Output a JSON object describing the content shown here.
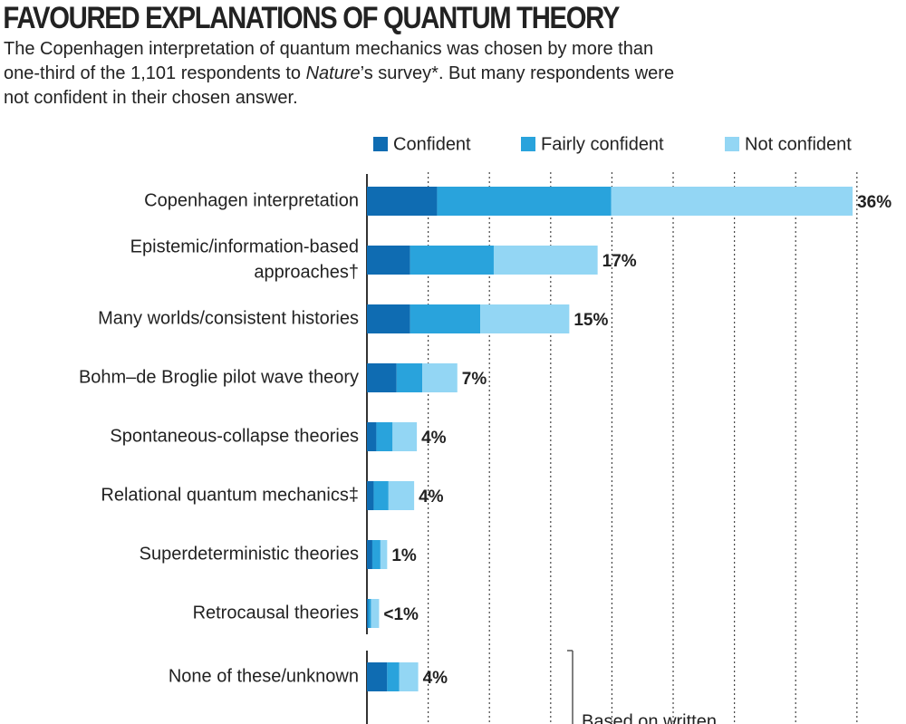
{
  "chart_data": {
    "type": "stacked-bar-horizontal",
    "title": "FAVOURED EXPLANATIONS OF QUANTUM THEORY",
    "subtitle": [
      [
        "The Copenhagen interpretation of quantum mechanics was chosen by more than"
      ],
      [
        "one-third of the 1,101 respondents to ",
        "Nature",
        "’s survey*. But many respondents were"
      ],
      [
        "not confident in their chosen answer."
      ]
    ],
    "categories": [
      [
        "Copenhagen interpretation"
      ],
      [
        "Epistemic/information-based",
        "approaches†"
      ],
      [
        "Many worlds/consistent histories"
      ],
      [
        "Bohm–de Broglie pilot wave theory"
      ],
      [
        "Spontaneous-collapse theories"
      ],
      [
        "Relational quantum mechanics‡"
      ],
      [
        "Superdeterministic theories"
      ],
      [
        "Retrocausal theories"
      ],
      [
        "None of these/unknown"
      ]
    ],
    "series": [
      {
        "name": "Confident",
        "color": "#0f6cb2",
        "values": [
          5.2,
          3.2,
          3.2,
          2.2,
          0.7,
          0.5,
          0.4,
          0.1,
          1.5
        ]
      },
      {
        "name": "Fairly confident",
        "color": "#29a3dc",
        "values": [
          12.9,
          6.2,
          5.2,
          1.9,
          1.2,
          1.1,
          0.6,
          0.2,
          0.9
        ]
      },
      {
        "name": "Not confident",
        "color": "#93d6f4",
        "values": [
          17.9,
          7.7,
          6.6,
          2.6,
          1.8,
          1.9,
          0.5,
          0.6,
          1.4
        ]
      }
    ],
    "total_labels": [
      "36%",
      "17%",
      "15%",
      "7%",
      "4%",
      "4%",
      "1%",
      "<1%",
      "4%"
    ],
    "xlim": [
      0,
      36.6
    ],
    "xticks": [
      4.54,
      9.08,
      13.62,
      18.16,
      22.7,
      27.24,
      31.78,
      36.32
    ],
    "grid": true,
    "legend": "top-right",
    "annotation": "Based on written"
  }
}
